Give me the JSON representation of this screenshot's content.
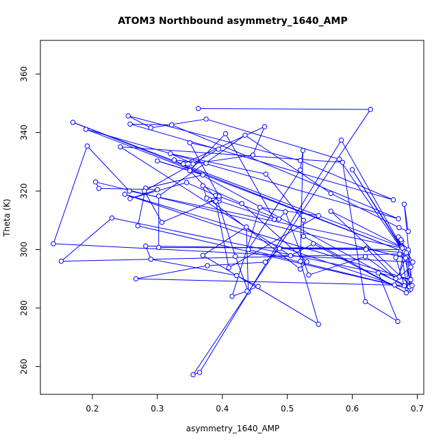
{
  "chart_data": {
    "type": "line",
    "title": "ATOM3 Northbound asymmetry_1640_AMP",
    "xlabel": "asymmetry_1640_AMP",
    "ylabel": "Theta (K)",
    "xlim": [
      0.12,
      0.71
    ],
    "ylim": [
      250.5,
      371.5
    ],
    "xticks": [
      0.2,
      0.3,
      0.4,
      0.5,
      0.6,
      0.7
    ],
    "yticks": [
      260,
      280,
      300,
      320,
      340,
      360
    ],
    "xtick_labels": [
      "0.2",
      "0.3",
      "0.4",
      "0.5",
      "0.6",
      "0.7"
    ],
    "ytick_labels": [
      "260",
      "280",
      "300",
      "320",
      "340",
      "360"
    ],
    "series_color": "#0000ff",
    "marker": "open-circle",
    "grid": false,
    "x": [
      0.363,
      0.628,
      0.355,
      0.365,
      0.583,
      0.682,
      0.677,
      0.676,
      0.69,
      0.567,
      0.676,
      0.671,
      0.685,
      0.684,
      0.686,
      0.688,
      0.69,
      0.672,
      0.68,
      0.17,
      0.675,
      0.19,
      0.671,
      0.322,
      0.258,
      0.663,
      0.52,
      0.255,
      0.29,
      0.375,
      0.58,
      0.684,
      0.6,
      0.68,
      0.675,
      0.693,
      0.14,
      0.192,
      0.257,
      0.677,
      0.673,
      0.152,
      0.23,
      0.69,
      0.25,
      0.665,
      0.682,
      0.205,
      0.21,
      0.3,
      0.258,
      0.345,
      0.39,
      0.42,
      0.44,
      0.437,
      0.37,
      0.548,
      0.52,
      0.524,
      0.52,
      0.44,
      0.69,
      0.27,
      0.282,
      0.37,
      0.3,
      0.35,
      0.405,
      0.48,
      0.395,
      0.34,
      0.465,
      0.447,
      0.355,
      0.32,
      0.467,
      0.525,
      0.525,
      0.683,
      0.54,
      0.505,
      0.243,
      0.585,
      0.62,
      0.67,
      0.64,
      0.688,
      0.686,
      0.282,
      0.29,
      0.422,
      0.455,
      0.438,
      0.415,
      0.458,
      0.548,
      0.41,
      0.39,
      0.38,
      0.52,
      0.53,
      0.43,
      0.37,
      0.376,
      0.395,
      0.307,
      0.28,
      0.394,
      0.35,
      0.395,
      0.487,
      0.497,
      0.533,
      0.62,
      0.667,
      0.622,
      0.302,
      0.302,
      0.435,
      0.567,
      0.672,
      0.686,
      0.68,
      0.692,
      0.267,
      0.377,
      0.466,
      0.488,
      0.621,
      0.683,
      0.667,
      0.68,
      0.326,
      0.375
    ],
    "y": [
      348.2,
      347.9,
      257.2,
      258.0,
      337.4,
      298.5,
      300.5,
      302.8,
      287.6,
      313.1,
      300.9,
      304.3,
      286.3,
      299.1,
      299.1,
      286.2,
      294.0,
      290.6,
      300.4,
      343.5,
      299.6,
      341.1,
      310.5,
      342.6,
      342.9,
      317.0,
      330.4,
      345.7,
      341.6,
      344.6,
      330.9,
      297.5,
      327.3,
      299.3,
      303.4,
      295.7,
      302.0,
      335.4,
      320.0,
      300.5,
      298.5,
      296.0,
      310.8,
      289.7,
      318.9,
      287.9,
      297.1,
      323.1,
      320.9,
      320.5,
      317.4,
      322.9,
      318.5,
      297.7,
      285.5,
      307.7,
      298.0,
      274.5,
      296.0,
      333.9,
      327.2,
      300.0,
      286.5,
      308.1,
      321.0,
      325.5,
      330.3,
      327.0,
      339.6,
      310.3,
      316.6,
      329.3,
      342.0,
      332.3,
      329.3,
      332.8,
      325.8,
      310.0,
      304.5,
      285.2,
      302.0,
      297.9,
      335.1,
      329.8,
      282.2,
      275.4,
      292.0,
      287.3,
      299.9,
      301.2,
      296.7,
      291.1,
      287.4,
      285.8,
      284.0,
      314.4,
      311.6,
      293.8,
      316.5,
      317.1,
      293.3,
      295.8,
      315.7,
      321.8,
      317.6,
      317.5,
      309.3,
      320.0,
      334.3,
      336.5,
      318.2,
      310.4,
      312.9,
      291.3,
      297.6,
      290.1,
      300.5,
      300.7,
      318.3,
      339.1,
      319.2,
      307.5,
      306.2,
      315.5,
      287.7,
      290.0,
      294.5,
      295.7,
      300.3,
      300.0,
      298.9,
      297.3,
      287.6,
      330.6,
      329.5
    ]
  }
}
